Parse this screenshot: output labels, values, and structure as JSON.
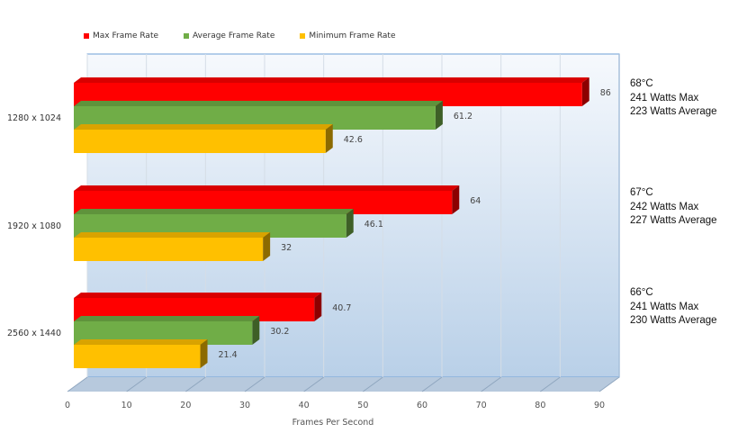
{
  "chart_data": {
    "type": "bar",
    "orientation": "horizontal",
    "categories": [
      "1280 x 1024",
      "1920 x 1080",
      "2560 x 1440"
    ],
    "series": [
      {
        "name": "Max Frame Rate",
        "color": "#ff0000",
        "values": [
          86,
          64,
          40.7
        ]
      },
      {
        "name": "Average Frame Rate",
        "color": "#70ad47",
        "values": [
          61.2,
          46.1,
          30.2
        ]
      },
      {
        "name": "Minimum Frame Rate",
        "color": "#ffc000",
        "values": [
          42.6,
          32,
          21.4
        ]
      }
    ],
    "xlabel": "Frames Per Second",
    "ylabel": "",
    "xlim": [
      0,
      90
    ],
    "xticks": [
      0,
      10,
      20,
      30,
      40,
      50,
      60,
      70,
      80,
      90
    ],
    "grid": true,
    "legend_position": "top-left",
    "annotations": [
      {
        "category": "1280 x 1024",
        "lines": [
          "68°C",
          "241 Watts Max",
          "223 Watts Average"
        ]
      },
      {
        "category": "1920 x 1080",
        "lines": [
          "67°C",
          "242 Watts Max",
          "227 Watts Average"
        ]
      },
      {
        "category": "2560 x 1440",
        "lines": [
          "66°C",
          "241 Watts Max",
          "230 Watts Average"
        ]
      }
    ]
  }
}
